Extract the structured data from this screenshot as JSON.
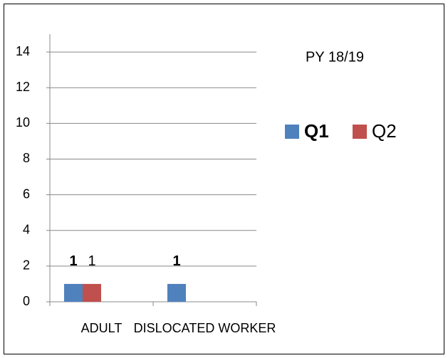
{
  "chart_data": {
    "type": "bar",
    "title": "PY 18/19",
    "categories": [
      "ADULT",
      "DISLOCATED WORKER"
    ],
    "series": [
      {
        "name": "Q1",
        "color": "#4f81bd",
        "bold": true,
        "values": [
          1,
          1
        ]
      },
      {
        "name": "Q2",
        "color": "#c0504d",
        "bold": false,
        "values": [
          1,
          null
        ]
      }
    ],
    "ylim": [
      0,
      15
    ],
    "yticks": [
      0,
      2,
      4,
      6,
      8,
      10,
      12,
      14
    ],
    "grid": true,
    "legend": "right"
  }
}
